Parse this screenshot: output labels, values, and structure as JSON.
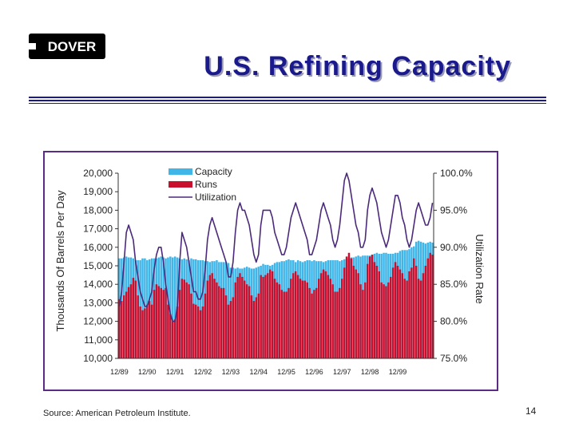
{
  "logo": {
    "text": "DOVER"
  },
  "slide": {
    "title": "U.S. Refining Capacity",
    "page_number": "14",
    "source": "Source:  American Petroleum Institute."
  },
  "colors": {
    "title": "#1a1a8c",
    "capacity": "#3fb5e8",
    "runs": "#c8102e",
    "utilization": "#4b2a7b",
    "frame": "#5b2c83"
  },
  "chart_data": {
    "type": "bar",
    "ylabel": "Thousands Of Barrels Per Day",
    "y2label": "Utilization Rate",
    "ylim": [
      10000,
      20000
    ],
    "y2lim": [
      75.0,
      100.0
    ],
    "y_ticks": [
      "10,000",
      "11,000",
      "12,000",
      "13,000",
      "14,000",
      "15,000",
      "16,000",
      "17,000",
      "18,000",
      "19,000",
      "20,000"
    ],
    "y2_ticks": [
      "75.0%",
      "80.0%",
      "85.0%",
      "90.0%",
      "95.0%",
      "100.0%"
    ],
    "x_tick_labels": [
      "12/89",
      "12/90",
      "12/91",
      "12/92",
      "12/93",
      "12/94",
      "12/95",
      "12/96",
      "12/97",
      "12/98",
      "12/99"
    ],
    "legend": [
      "Capacity",
      "Runs",
      "Utilization"
    ],
    "legend_position": "top-left",
    "monthly": {
      "capacity": [
        15400,
        15400,
        15450,
        15500,
        15450,
        15450,
        15400,
        15300,
        15300,
        15300,
        15400,
        15400,
        15300,
        15350,
        15400,
        15400,
        15400,
        15450,
        15500,
        15450,
        15400,
        15450,
        15500,
        15450,
        15500,
        15450,
        15400,
        15350,
        15400,
        15350,
        15300,
        15400,
        15350,
        15350,
        15300,
        15300,
        15300,
        15250,
        15250,
        15200,
        15250,
        15250,
        15300,
        15200,
        15200,
        15200,
        15200,
        15150,
        14900,
        14900,
        14850,
        14900,
        14850,
        14850,
        14900,
        14950,
        14900,
        14850,
        14850,
        14900,
        14950,
        15000,
        15100,
        15050,
        15050,
        15000,
        15050,
        15150,
        15200,
        15200,
        15250,
        15250,
        15300,
        15350,
        15300,
        15300,
        15200,
        15300,
        15250,
        15200,
        15250,
        15300,
        15300,
        15250,
        15300,
        15250,
        15250,
        15250,
        15200,
        15250,
        15300,
        15300,
        15300,
        15300,
        15300,
        15250,
        15300,
        15350,
        15400,
        15400,
        15450,
        15450,
        15500,
        15550,
        15500,
        15550,
        15550,
        15550,
        15550,
        15600,
        15650,
        15700,
        15650,
        15650,
        15700,
        15700,
        15650,
        15650,
        15650,
        15700,
        15700,
        15800,
        15850,
        15850,
        15850,
        15900,
        16000,
        16050,
        16300,
        16350,
        16300,
        16250,
        16200,
        16250,
        16300,
        16250
      ],
      "runs": [
        13200,
        13100,
        13400,
        13600,
        13850,
        14000,
        14350,
        14200,
        13400,
        12800,
        12600,
        12700,
        12900,
        13100,
        12900,
        13700,
        14000,
        13900,
        13800,
        13700,
        13800,
        12900,
        12400,
        12000,
        12100,
        12800,
        13700,
        14300,
        14250,
        14100,
        14000,
        13500,
        12950,
        12900,
        12800,
        12600,
        12800,
        13500,
        14200,
        14500,
        14600,
        14300,
        14100,
        13900,
        13800,
        13800,
        13400,
        12900,
        13100,
        13300,
        14100,
        14400,
        14600,
        14400,
        14200,
        14000,
        13900,
        13400,
        13100,
        13300,
        13500,
        14500,
        14400,
        14500,
        14600,
        14800,
        14700,
        14300,
        14100,
        14000,
        13700,
        13600,
        13600,
        13800,
        14300,
        14600,
        14700,
        14500,
        14300,
        14200,
        14200,
        14100,
        13800,
        13500,
        13700,
        13800,
        14300,
        14600,
        14800,
        14700,
        14500,
        14300,
        14000,
        13600,
        13600,
        13800,
        14300,
        14900,
        15500,
        15700,
        15400,
        15000,
        14800,
        14600,
        14000,
        13700,
        14100,
        15100,
        15500,
        15600,
        15200,
        15000,
        14700,
        14100,
        14000,
        13900,
        14100,
        14400,
        14900,
        15200,
        15000,
        14800,
        14600,
        14300,
        14200,
        14700,
        14900,
        15400,
        15000,
        14300,
        14200,
        14600,
        15000,
        15400,
        15700,
        15600
      ],
      "utilization": [
        82,
        84,
        88,
        92,
        93,
        92,
        91,
        88,
        86,
        84,
        83,
        82,
        82,
        83,
        84,
        87,
        89,
        90,
        90,
        88,
        85,
        83,
        81,
        80,
        80,
        82,
        88,
        92,
        91,
        90,
        88,
        86,
        84,
        84,
        83,
        83,
        84,
        87,
        91,
        93,
        94,
        93,
        92,
        91,
        90,
        89,
        88,
        86,
        86,
        88,
        92,
        95,
        96,
        95,
        95,
        94,
        93,
        91,
        89,
        88,
        89,
        93,
        95,
        95,
        95,
        95,
        94,
        92,
        91,
        90,
        89,
        89,
        90,
        92,
        94,
        95,
        96,
        95,
        94,
        93,
        92,
        91,
        89,
        89,
        90,
        91,
        93,
        95,
        96,
        95,
        94,
        93,
        91,
        90,
        91,
        93,
        96,
        99,
        100,
        99,
        97,
        95,
        93,
        92,
        90,
        90,
        91,
        95,
        97,
        98,
        97,
        96,
        94,
        92,
        91,
        90,
        91,
        93,
        95,
        97,
        97,
        96,
        94,
        93,
        91,
        90,
        91,
        93,
        95,
        96,
        95,
        94,
        93,
        93,
        94,
        96
      ]
    }
  }
}
